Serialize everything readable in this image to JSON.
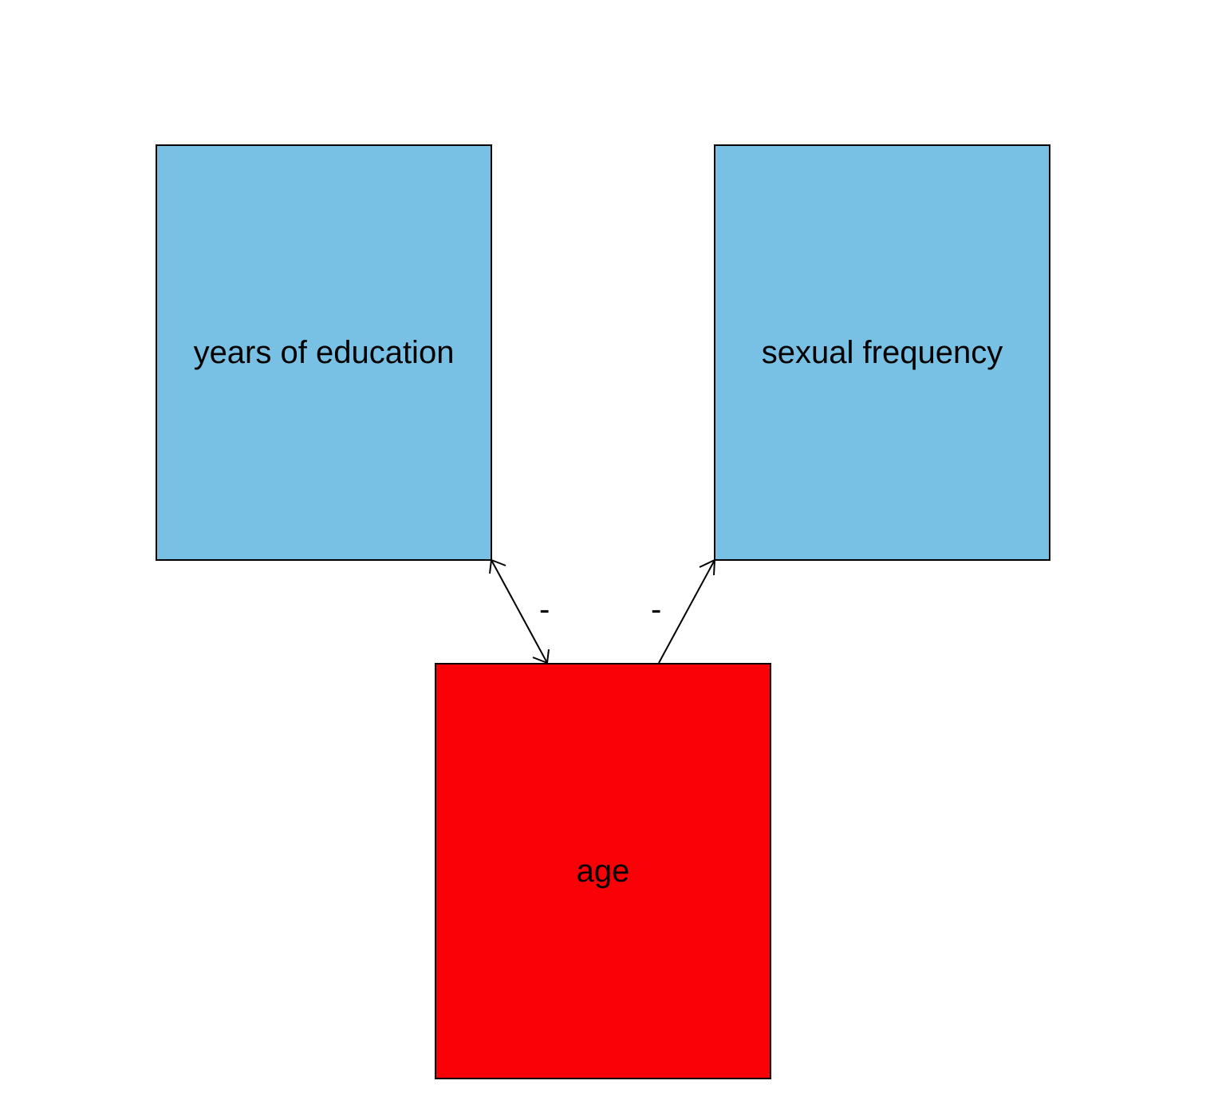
{
  "nodes": {
    "education": {
      "label": "years of education",
      "color": "#78c1e5"
    },
    "sexual_frequency": {
      "label": "sexual frequency",
      "color": "#78c1e5"
    },
    "age": {
      "label": "age",
      "color": "#fa0007"
    }
  },
  "edges": {
    "age_education": {
      "from": "age",
      "to": "years of education",
      "sign": "-",
      "bidirectional": true
    },
    "age_sexual_frequency": {
      "from": "age",
      "to": "sexual frequency",
      "sign": "-",
      "bidirectional": false
    }
  },
  "colors": {
    "stroke": "#000000",
    "background": "#ffffff"
  }
}
